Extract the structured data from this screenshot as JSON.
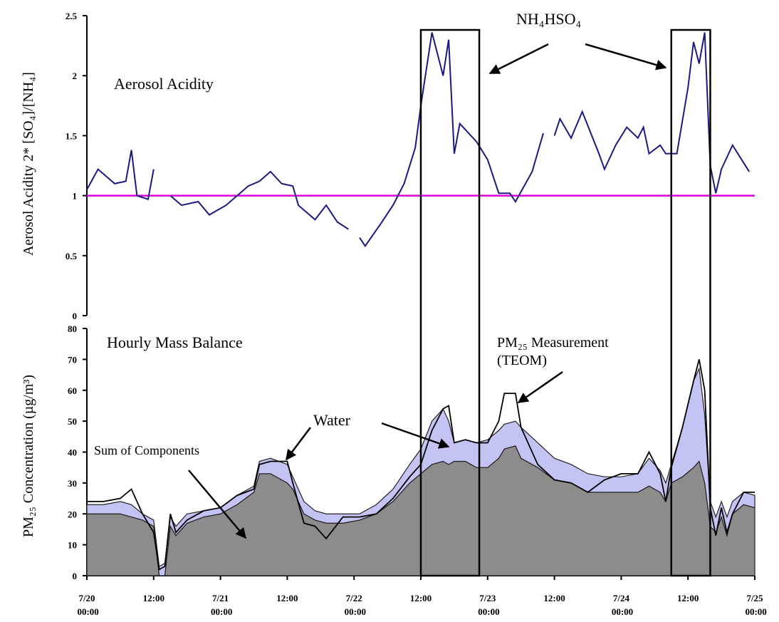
{
  "chart_data": [
    {
      "type": "line",
      "y_label": "Aerosol Acidity 2* [SO₄]/[NH₄]",
      "title": "Aerosol Acidity",
      "annotation": "NH₄HSO₄",
      "xlim": [
        "7/20 00:00",
        "7/25 00:00"
      ],
      "ylim": [
        0,
        2.5
      ],
      "yticks": [
        0,
        0.5,
        1,
        1.5,
        2,
        2.5
      ],
      "reference_line": {
        "value": 1,
        "color": "#e000e0"
      },
      "highlight_ranges": [
        [
          "7/22 12:00",
          "7/22 22:30"
        ],
        [
          "7/24 09:00",
          "7/24 16:00"
        ]
      ],
      "x": [
        "7/20 00:00",
        "7/20 02:00",
        "7/20 05:00",
        "7/20 07:00",
        "7/20 08:00",
        "7/20 09:00",
        "7/20 11:00",
        "7/20 12:00",
        "7/20 13:00",
        "7/20 15:00",
        "7/20 17:00",
        "7/20 20:00",
        "7/20 22:00",
        "7/21 01:00",
        "7/21 03:00",
        "7/21 05:00",
        "7/21 07:00",
        "7/21 09:00",
        "7/21 11:00",
        "7/21 13:00",
        "7/21 14:00",
        "7/21 17:00",
        "7/21 19:00",
        "7/21 21:00",
        "7/21 23:00",
        "7/22 00:00",
        "7/22 01:00",
        "7/22 02:00",
        "7/22 05:00",
        "7/22 07:00",
        "7/22 09:00",
        "7/22 11:00",
        "7/22 12:00",
        "7/22 14:00",
        "7/22 16:00",
        "7/22 17:00",
        "7/22 18:00",
        "7/22 19:00",
        "7/22 22:00",
        "7/23 00:00",
        "7/23 02:00",
        "7/23 04:00",
        "7/23 05:00",
        "7/23 08:00",
        "7/23 10:00",
        "7/23 11:00",
        "7/23 12:00",
        "7/23 13:00",
        "7/23 15:00",
        "7/23 17:00",
        "7/23 20:00",
        "7/23 21:00",
        "7/23 23:00",
        "7/24 01:00",
        "7/24 03:00",
        "7/24 04:00",
        "7/24 05:00",
        "7/24 07:00",
        "7/24 08:00",
        "7/24 10:00",
        "7/24 12:00",
        "7/24 13:00",
        "7/24 14:00",
        "7/24 15:00",
        "7/24 16:00",
        "7/24 17:00",
        "7/24 18:00",
        "7/24 20:00",
        "7/24 23:00"
      ],
      "series": [
        {
          "color": "#1a1a80",
          "values": [
            1.05,
            1.22,
            1.1,
            1.12,
            1.38,
            1.0,
            0.97,
            1.22,
            null,
            1.0,
            0.92,
            0.95,
            0.84,
            0.92,
            1.0,
            1.08,
            1.12,
            1.2,
            1.1,
            1.08,
            0.92,
            0.8,
            0.92,
            0.78,
            0.72,
            null,
            0.65,
            0.58,
            0.78,
            0.92,
            1.1,
            1.4,
            1.75,
            2.36,
            2.0,
            2.3,
            1.35,
            1.6,
            1.45,
            1.3,
            1.02,
            1.02,
            0.95,
            1.2,
            1.52,
            null,
            1.5,
            1.64,
            1.48,
            1.7,
            1.35,
            1.22,
            1.42,
            1.57,
            1.48,
            1.57,
            1.35,
            1.42,
            1.35,
            1.35,
            1.9,
            2.28,
            2.1,
            2.36,
            1.25,
            1.02,
            1.22,
            1.42,
            1.2
          ]
        }
      ]
    },
    {
      "type": "area",
      "y_label": "PM₂₅ Concentration (µg/m³)",
      "title": "Hourly Mass Balance",
      "annotations": [
        "Water",
        "Sum of Components",
        "PM₂₅ Measurement",
        "(TEOM)"
      ],
      "xlim": [
        "7/20 00:00",
        "7/25 00:00"
      ],
      "xticks": [
        "7/20 00:00",
        {
          "value": "7/20 12:00",
          "label": "12:00"
        },
        "7/21 00:00",
        {
          "value": "7/21 12:00",
          "label": "12:00"
        },
        "7/22 00:00",
        {
          "value": "7/22 12:00",
          "label": "12:00"
        },
        "7/23 00:00",
        {
          "value": "7/23 12:00",
          "label": "12:00"
        },
        "7/24 00:00",
        {
          "value": "7/24 12:00",
          "label": "12:00"
        },
        "7/25 00:00"
      ],
      "ylim": [
        0,
        80
      ],
      "yticks": [
        0,
        10,
        20,
        30,
        40,
        50,
        60,
        70,
        80
      ],
      "x": [
        "7/20 00:00",
        "7/20 03:00",
        "7/20 06:00",
        "7/20 08:00",
        "7/20 10:00",
        "7/20 12:00",
        "7/20 13:00",
        "7/20 14:00",
        "7/20 15:00",
        "7/20 16:00",
        "7/20 18:00",
        "7/20 21:00",
        "7/21 00:00",
        "7/21 03:00",
        "7/21 06:00",
        "7/21 07:00",
        "7/21 09:00",
        "7/21 12:00",
        "7/21 13:00",
        "7/21 15:00",
        "7/21 17:00",
        "7/21 19:00",
        "7/21 22:00",
        "7/22 01:00",
        "7/22 04:00",
        "7/22 07:00",
        "7/22 10:00",
        "7/22 12:00",
        "7/22 14:00",
        "7/22 16:00",
        "7/22 17:00",
        "7/22 18:00",
        "7/22 20:00",
        "7/22 22:00",
        "7/23 00:00",
        "7/23 02:00",
        "7/23 03:00",
        "7/23 05:00",
        "7/23 06:00",
        "7/23 09:00",
        "7/23 12:00",
        "7/23 15:00",
        "7/23 18:00",
        "7/23 21:00",
        "7/24 00:00",
        "7/24 03:00",
        "7/24 05:00",
        "7/24 07:00",
        "7/24 08:00",
        "7/24 09:00",
        "7/24 11:00",
        "7/24 13:00",
        "7/24 14:00",
        "7/24 15:00",
        "7/24 16:00",
        "7/24 17:00",
        "7/24 18:00",
        "7/24 19:00",
        "7/24 20:00",
        "7/24 22:00",
        "7/25 00:00"
      ],
      "series": [
        {
          "color": "#8c8c8c",
          "stacked": true,
          "values": [
            20,
            20,
            20,
            19,
            18,
            16,
            0,
            0,
            16,
            13,
            17,
            19,
            20,
            23,
            27,
            33,
            33,
            30,
            28,
            20,
            18,
            17,
            17,
            18,
            20,
            24,
            30,
            33,
            36,
            37,
            36,
            37,
            37,
            35,
            35,
            38,
            41,
            42,
            38,
            35,
            31,
            30,
            27,
            27,
            27,
            27,
            29,
            27,
            24,
            30,
            32,
            35,
            37,
            30,
            16,
            14,
            19,
            13,
            20,
            23,
            22
          ]
        },
        {
          "color": "#c4c4f4",
          "stacked": true,
          "values": [
            3,
            3,
            4,
            4,
            2,
            2,
            3,
            4,
            3,
            3,
            3,
            2,
            2,
            3,
            2,
            4,
            5,
            6,
            4,
            4,
            3,
            3,
            3,
            2,
            3,
            4,
            6,
            8,
            14,
            17,
            14,
            6,
            7,
            8,
            9,
            9,
            8,
            8,
            10,
            8,
            7,
            6,
            6,
            5,
            5,
            6,
            9,
            7,
            6,
            6,
            16,
            28,
            30,
            22,
            8,
            5,
            5,
            6,
            4,
            4,
            4
          ]
        },
        {
          "color": "#000000",
          "stacked": false,
          "values": [
            24,
            24,
            25,
            28,
            20,
            14,
            2,
            3,
            20,
            14,
            18,
            21,
            22,
            26,
            28,
            36,
            37,
            37,
            30,
            17,
            16,
            12,
            19,
            19,
            20,
            25,
            32,
            36,
            47,
            54,
            55,
            43,
            44,
            43,
            43,
            50,
            59,
            59,
            48,
            36,
            31,
            30,
            27,
            31,
            33,
            33,
            40,
            33,
            24,
            35,
            48,
            63,
            70,
            60,
            22,
            13,
            22,
            14,
            20,
            27,
            27
          ]
        }
      ]
    }
  ]
}
